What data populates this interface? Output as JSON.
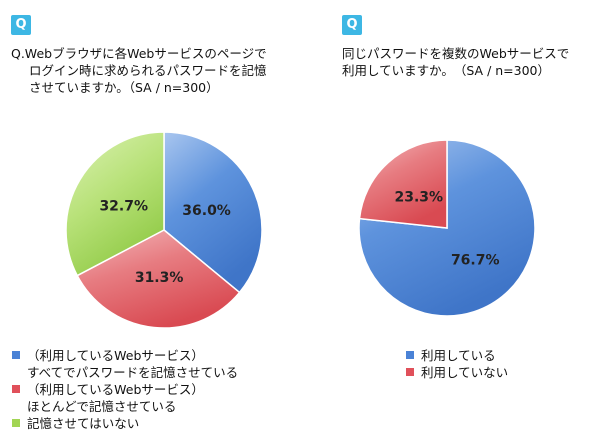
{
  "colors": {
    "badge": "#3db7e4",
    "blue": "#4a82d6",
    "red": "#e0505a",
    "green": "#a2d554"
  },
  "chart_data": [
    {
      "type": "pie",
      "badge": "Q",
      "title_lines": [
        "Q.Webブラウザに各Webサービスのページで",
        "ログイン時に求められるパスワードを記憶",
        "させていますか。（SA / n=300）"
      ],
      "start_angle_deg": 0,
      "slices": [
        {
          "label_lines": [
            "（利用しているWebサービス）",
            "すべてでパスワードを記憶させている"
          ],
          "value": 36.0,
          "display": "36.0%",
          "color": "#4a82d6",
          "gradient": "blue"
        },
        {
          "label_lines": [
            "（利用しているWebサービス）",
            "ほとんどで記憶させている"
          ],
          "value": 31.3,
          "display": "31.3%",
          "color": "#e0505a",
          "gradient": "red"
        },
        {
          "label_lines": [
            "記憶させてはいない"
          ],
          "value": 32.7,
          "display": "32.7%",
          "color": "#a2d554",
          "gradient": "green"
        }
      ],
      "legend": "bottom-left"
    },
    {
      "type": "pie",
      "badge": "Q",
      "title_lines": [
        "同じパスワードを複数のWebサービスで",
        "利用していますか。　（SA / n=300）"
      ],
      "start_angle_deg": 0,
      "slices": [
        {
          "label_lines": [
            "利用している"
          ],
          "value": 76.7,
          "display": "76.7%",
          "color": "#4a82d6",
          "gradient": "blue"
        },
        {
          "label_lines": [
            "利用していない"
          ],
          "value": 23.3,
          "display": "23.3%",
          "color": "#e0505a",
          "gradient": "red"
        }
      ],
      "legend": "bottom-left"
    }
  ]
}
